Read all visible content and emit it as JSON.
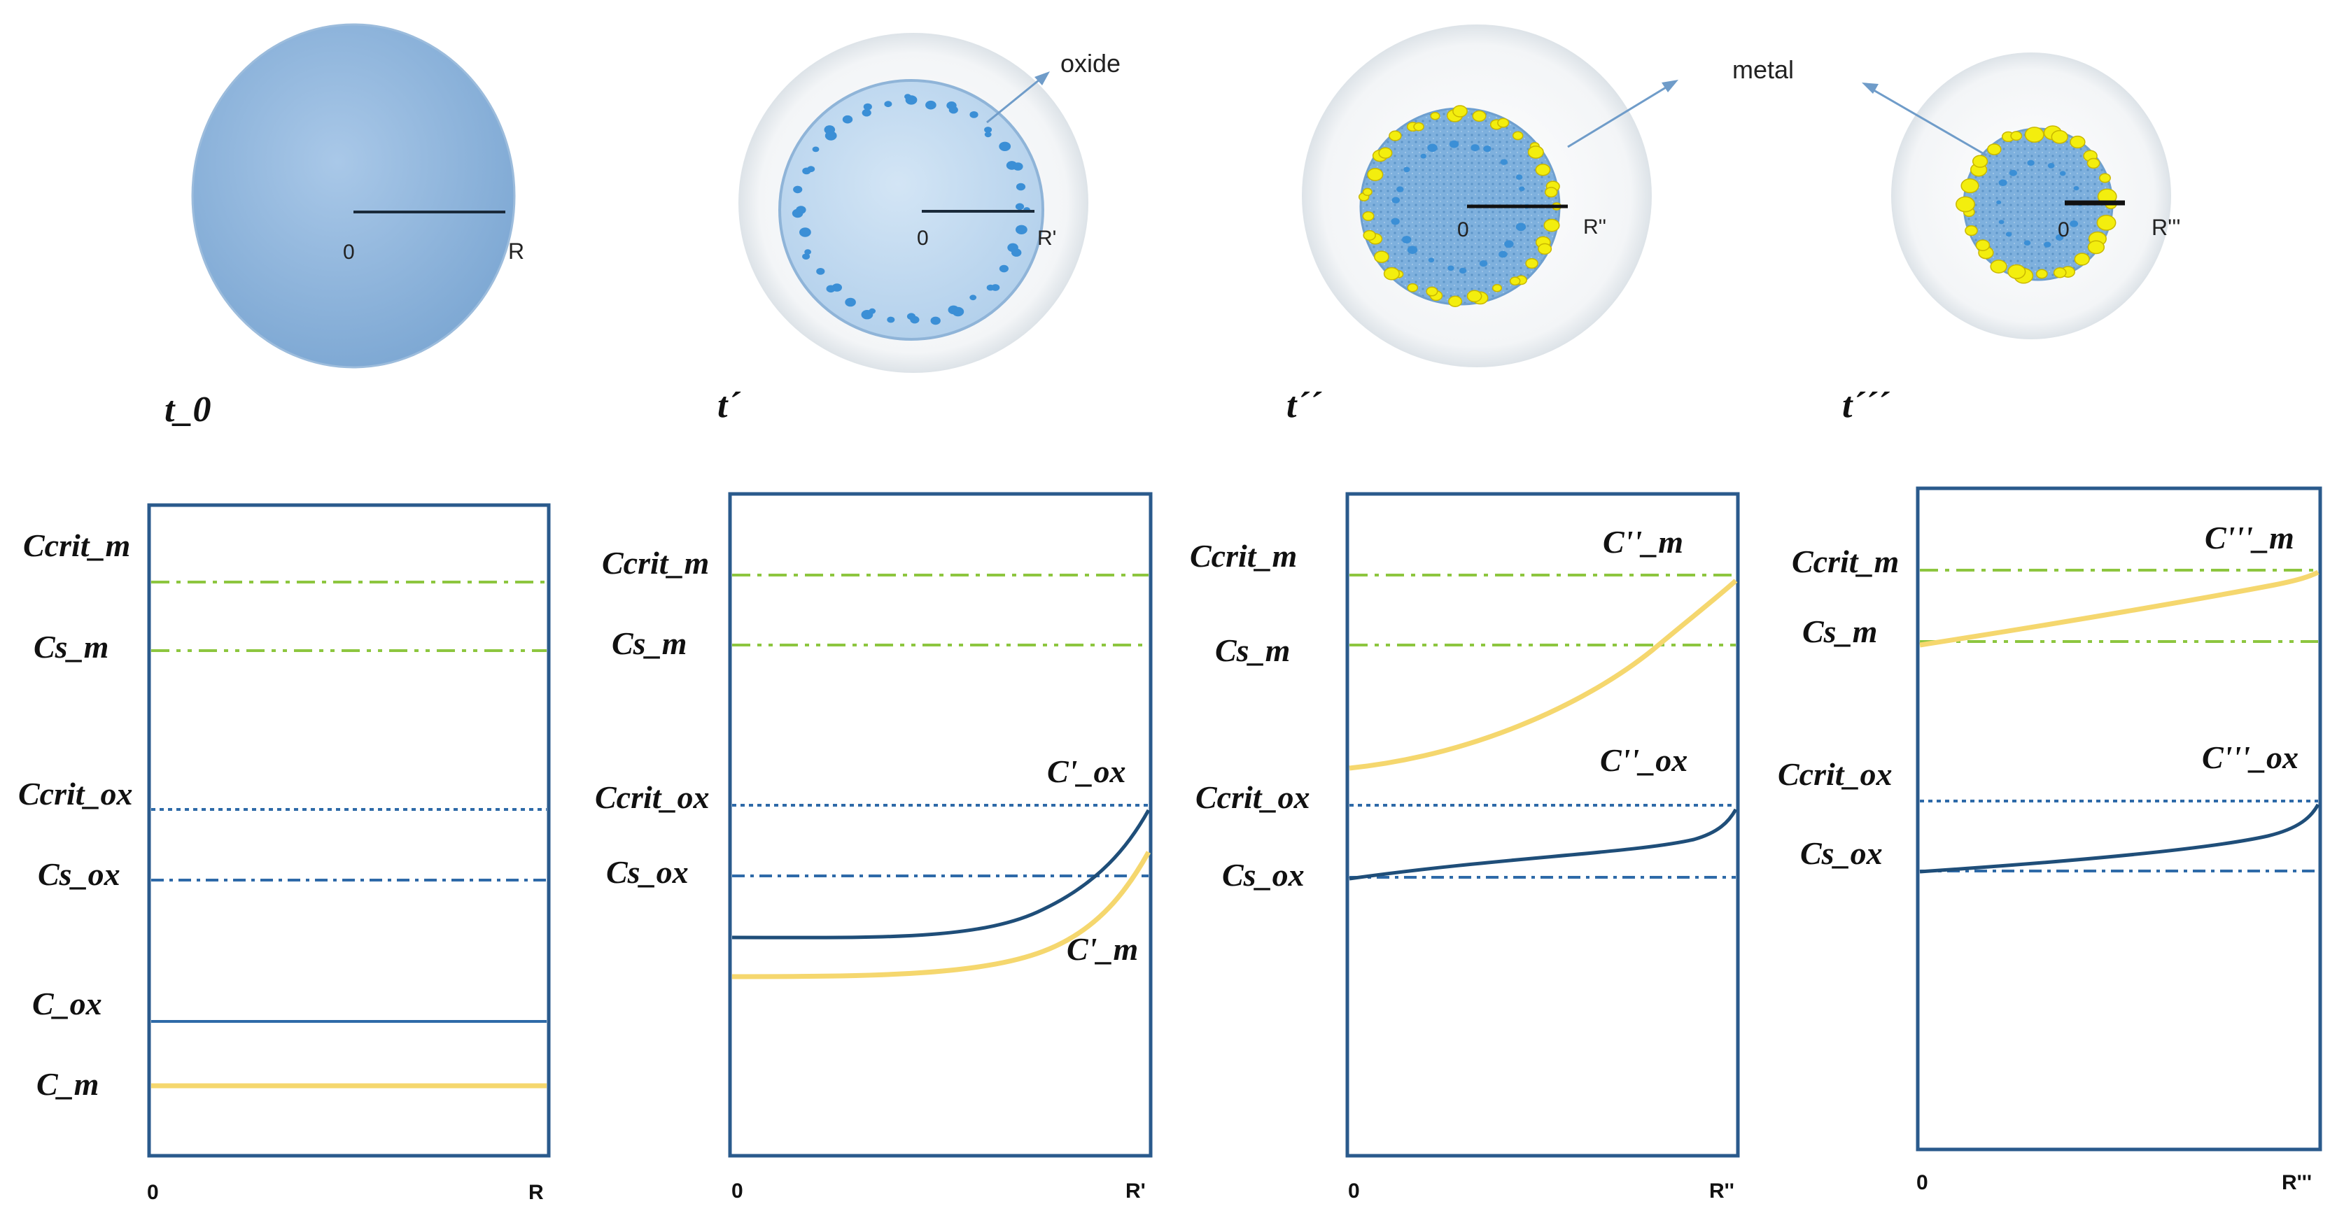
{
  "colors": {
    "panel_border": "#2a5a8c",
    "green_dash": "#8dc63f",
    "blue_dash": "#2e6aa8",
    "ox_curve": "#1f4e79",
    "metal_curve": "#f5d76e",
    "particle_fill": "#8fb8df",
    "particle_light": "#c4dcf0",
    "halo": "#eef1f4",
    "oxide_drop": "#3b8fd6",
    "metal_drop": "#f3ee0e"
  },
  "stages": [
    {
      "time_label": "t_0",
      "center_label": "0",
      "radius_label": "R",
      "callout": "",
      "x_start": "0",
      "x_end": "R",
      "levels": [
        {
          "label": "Ccrit_m"
        },
        {
          "label": "Cs_m"
        },
        {
          "label": "Ccrit_ox"
        },
        {
          "label": "Cs_ox"
        },
        {
          "label": "C_ox"
        },
        {
          "label": "C_m"
        }
      ],
      "curves": []
    },
    {
      "time_label": "t´",
      "center_label": "0",
      "radius_label": "R'",
      "callout": "oxide",
      "x_start": "0",
      "x_end": "R'",
      "levels": [
        {
          "label": "Ccrit_m"
        },
        {
          "label": "Cs_m"
        },
        {
          "label": "Ccrit_ox"
        },
        {
          "label": "Cs_ox"
        }
      ],
      "curves": [
        {
          "label": "C'_ox"
        },
        {
          "label": "C'_m"
        }
      ]
    },
    {
      "time_label": "t´´",
      "center_label": "0",
      "radius_label": "R''",
      "callout": "metal",
      "x_start": "0",
      "x_end": "R''",
      "levels": [
        {
          "label": "Ccrit_m"
        },
        {
          "label": "Cs_m"
        },
        {
          "label": "Ccrit_ox"
        },
        {
          "label": "Cs_ox"
        }
      ],
      "curves": [
        {
          "label": "C''_m"
        },
        {
          "label": "C''_ox"
        }
      ]
    },
    {
      "time_label": "t´´´",
      "center_label": "0",
      "radius_label": "R'''",
      "callout": "",
      "x_start": "0",
      "x_end": "R'''",
      "levels": [
        {
          "label": "Ccrit_m"
        },
        {
          "label": "Cs_m"
        },
        {
          "label": "Ccrit_ox"
        },
        {
          "label": "Cs_ox"
        }
      ],
      "curves": [
        {
          "label": "C'''_m"
        },
        {
          "label": "C'''_ox"
        }
      ]
    }
  ]
}
